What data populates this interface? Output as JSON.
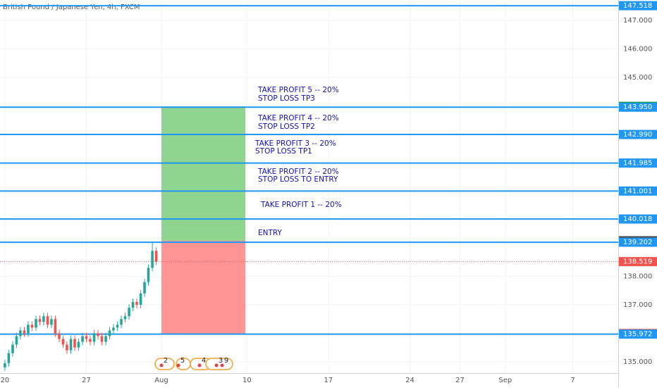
{
  "chart_data": {
    "type": "candlestick",
    "title": "British Pound / Japanese Yen, 4h, FXCM",
    "xlim": [
      -0.42,
      52.7
    ],
    "xticks": [
      {
        "value": 0,
        "label": "20"
      },
      {
        "value": 7,
        "label": "27"
      },
      {
        "value": 13.45,
        "label": "Aug"
      },
      {
        "value": 20.8,
        "label": "10"
      },
      {
        "value": 27.8,
        "label": "17"
      },
      {
        "value": 34.8,
        "label": "24"
      },
      {
        "value": 39.1,
        "label": "27"
      },
      {
        "value": 43,
        "label": "Sep"
      },
      {
        "value": 48.8,
        "label": "7"
      }
    ],
    "ylim": [
      134.6,
      147.718
    ],
    "yticks": [
      {
        "value": 135,
        "label": "135.000"
      },
      {
        "value": 137,
        "label": "137.000"
      },
      {
        "value": 138,
        "label": "138.000"
      },
      {
        "value": 145,
        "label": "145.000"
      },
      {
        "value": 146,
        "label": "146.000"
      },
      {
        "value": 147,
        "label": "147.000"
      }
    ],
    "grid": true,
    "up_color": "#26a69a",
    "down_color": "#ef5350",
    "x": [
      0,
      0.33,
      0.67,
      1,
      1.33,
      1.67,
      2,
      2.33,
      2.67,
      3,
      3.33,
      3.67,
      4,
      4.33,
      4.67,
      5,
      5.33,
      5.67,
      6,
      6.33,
      6.67,
      7,
      7.33,
      7.67,
      8,
      8.33,
      8.67,
      9,
      9.33,
      9.67,
      10,
      10.33,
      10.67,
      11,
      11.33,
      11.67,
      12,
      12.33,
      12.67,
      13
    ],
    "open": [
      134.8,
      134.95,
      135.3,
      135.6,
      135.9,
      136.1,
      136.0,
      136.3,
      136.2,
      136.5,
      136.4,
      136.6,
      136.3,
      136.5,
      136.0,
      135.8,
      135.6,
      135.4,
      135.8,
      135.5,
      135.7,
      135.9,
      135.8,
      135.7,
      136.0,
      135.9,
      135.7,
      135.9,
      136.1,
      136.2,
      136.3,
      136.5,
      136.6,
      136.9,
      137.1,
      137.0,
      137.4,
      137.8,
      138.3,
      138.9
    ],
    "high": [
      135.07,
      135.42,
      135.72,
      136.02,
      136.22,
      136.22,
      136.42,
      136.42,
      136.62,
      136.62,
      136.72,
      136.72,
      136.62,
      136.62,
      136.12,
      135.92,
      135.72,
      135.92,
      135.92,
      135.82,
      136.02,
      136.02,
      135.92,
      136.12,
      136.12,
      136.02,
      136.02,
      136.22,
      136.32,
      136.42,
      136.62,
      136.72,
      137.02,
      137.22,
      137.22,
      137.52,
      137.92,
      138.42,
      139.2,
      139.02
    ],
    "low": [
      134.68,
      134.83,
      135.18,
      135.48,
      135.78,
      135.88,
      135.88,
      136.08,
      136.08,
      136.28,
      136.28,
      136.18,
      136.18,
      135.88,
      135.68,
      135.48,
      135.28,
      135.28,
      135.38,
      135.38,
      135.58,
      135.68,
      135.58,
      135.58,
      135.78,
      135.58,
      135.58,
      135.78,
      135.98,
      136.08,
      136.18,
      136.38,
      136.48,
      136.78,
      136.88,
      136.88,
      137.28,
      137.68,
      138.18,
      138.4
    ],
    "close": [
      134.95,
      135.3,
      135.6,
      135.9,
      136.1,
      136.0,
      136.3,
      136.2,
      136.5,
      136.4,
      136.6,
      136.3,
      136.5,
      136.0,
      135.8,
      135.6,
      135.4,
      135.8,
      135.5,
      135.7,
      135.9,
      135.8,
      135.7,
      136.0,
      135.9,
      135.7,
      135.9,
      136.1,
      136.2,
      136.3,
      136.5,
      136.6,
      136.9,
      137.1,
      137.0,
      137.4,
      137.8,
      138.3,
      138.9,
      138.52
    ],
    "position": {
      "start": 13.45,
      "end": 20.67,
      "entry": 139.254,
      "target": 143.978,
      "stop": 135.987,
      "profit_color": "#8fd48f",
      "loss_color": "#ff9494"
    },
    "levels": [
      {
        "value": 147.518,
        "color": "#2196f3",
        "line": "solid"
      },
      {
        "value": 143.978,
        "color": "#0a9a2a"
      },
      {
        "value": 143.95,
        "label": "143.950",
        "color": "#2196f3",
        "line": "solid"
      },
      {
        "value": 142.99,
        "label": "142.990",
        "color": "#2196f3",
        "line": "solid"
      },
      {
        "value": 141.985,
        "color": "#2196f3",
        "line": "solid"
      },
      {
        "value": 141.001,
        "color": "#2196f3",
        "line": "solid"
      },
      {
        "value": 140.018,
        "color": "#2196f3",
        "line": "solid"
      },
      {
        "value": 139.254,
        "color": "#4a4a4a"
      },
      {
        "value": 139.202,
        "color": "#2196f3",
        "line": "solid"
      },
      {
        "value": 138.519,
        "color": "#ef5350",
        "line": "dotted"
      },
      {
        "value": 135.987,
        "color": "#e31a1a"
      },
      {
        "value": 135.972,
        "color": "#2196f3",
        "line": "solid"
      }
    ],
    "annotations": [
      "TAKE PROFIT 5 -- 20%",
      "STOP LOSS TP3",
      "TAKE PROFIT 4 -- 20%",
      "STOP LOSS TP2",
      "TAKE PROFIT 3 -- 20%",
      "STOP LOSS TP1",
      "TAKE PROFIT 2 -- 20%",
      "STOP LOSS TO ENTRY",
      "TAKE PROFIT 1 -- 20%",
      "ENTRY"
    ],
    "events": [
      "2",
      "5",
      "4",
      "3",
      "9"
    ]
  }
}
